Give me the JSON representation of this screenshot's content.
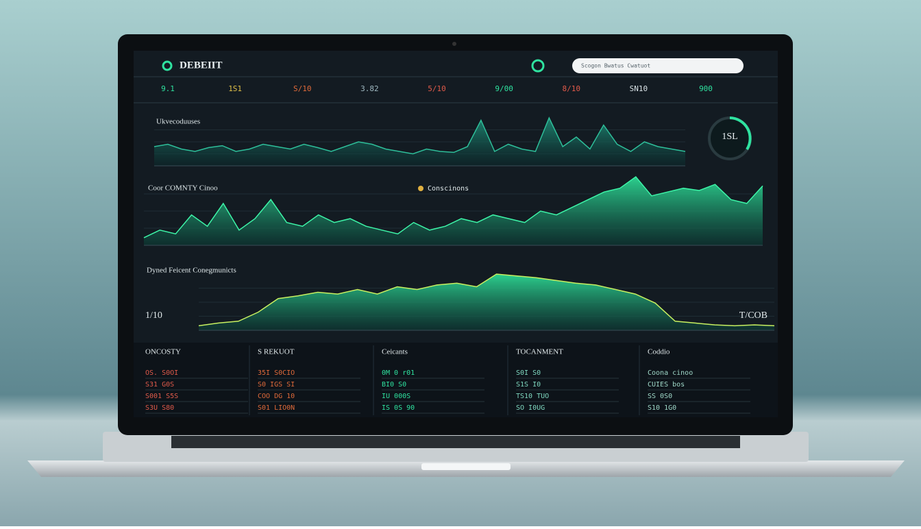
{
  "header": {
    "brand": "DEBEIIT",
    "search": "Scogon  Bwatus Cwatuot"
  },
  "kpis": [
    "9.1",
    "1S1",
    "S/10",
    "3.82",
    "5/10",
    "9/00",
    "8/10",
    "SN10",
    "900"
  ],
  "charts": [
    {
      "type": "area",
      "title": "Ukvecoduuses",
      "values": [
        40,
        45,
        35,
        30,
        38,
        42,
        30,
        35,
        45,
        40,
        35,
        45,
        38,
        30,
        40,
        50,
        45,
        35,
        30,
        25,
        35,
        30,
        28,
        40,
        95,
        30,
        45,
        35,
        30,
        100,
        40,
        60,
        35,
        85,
        45,
        30,
        50,
        40,
        35,
        30
      ]
    },
    {
      "type": "area",
      "title": "Coor COMNTY Cinoo",
      "legend": "Conscinons",
      "values": [
        10,
        20,
        15,
        40,
        25,
        55,
        20,
        35,
        60,
        30,
        25,
        40,
        30,
        35,
        25,
        20,
        15,
        30,
        20,
        25,
        35,
        30,
        40,
        35,
        30,
        45,
        40,
        50,
        60,
        70,
        75,
        90,
        65,
        70,
        75,
        72,
        80,
        60,
        55,
        78
      ]
    },
    {
      "type": "area",
      "title": "Dyned Feicent Conegmunicts",
      "left_value": "1/10",
      "right_value": "T/COB",
      "values": [
        5,
        8,
        10,
        20,
        35,
        38,
        42,
        40,
        45,
        40,
        48,
        45,
        50,
        52,
        48,
        62,
        60,
        58,
        55,
        52,
        50,
        45,
        40,
        30,
        10,
        8,
        6,
        5,
        6,
        5
      ]
    }
  ],
  "gauge": {
    "label": "1SL"
  },
  "tables": [
    {
      "title": "ONCOSTY",
      "rows": [
        "OS. S0OI",
        "S31 G0S",
        "S001 S5S",
        "S3U S80"
      ]
    },
    {
      "title": "S REKUOT",
      "rows": [
        "35I S0CIO",
        "S0 IGS SI",
        "COO DG 10",
        "S01 LIO0N"
      ]
    },
    {
      "title": "Ceicants",
      "rows": [
        "0M 0 r01",
        "BI0 S0",
        "IU 000S",
        "IS 0S 90"
      ]
    },
    {
      "title": "TOCANMENT",
      "rows": [
        "S0I S0",
        "S1S I0",
        "TS10 TUO",
        "SO I0UG"
      ]
    },
    {
      "title": "Coddio",
      "rows": [
        "Coona cinoo",
        "CUIES bos",
        "SS 0S0",
        "S10 1G0"
      ]
    }
  ]
}
